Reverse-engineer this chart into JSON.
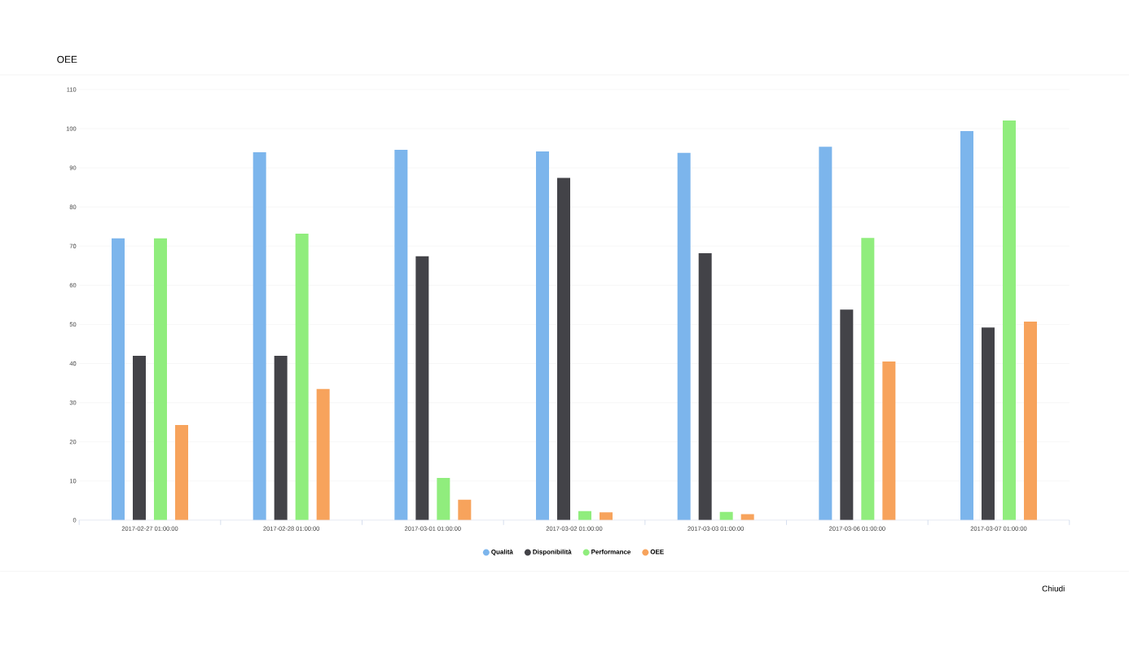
{
  "chart_data": {
    "type": "bar",
    "title": "OEE",
    "categories": [
      "2017-02-27 01:00:00",
      "2017-02-28 01:00:00",
      "2017-03-01 01:00:00",
      "2017-03-02 01:00:00",
      "2017-03-03 01:00:00",
      "2017-03-06 01:00:00",
      "2017-03-07 01:00:00"
    ],
    "series": [
      {
        "name": "Qualità",
        "color": "#7cb5ec",
        "values": [
          72,
          94,
          94.6,
          94.2,
          93.8,
          95.4,
          99.4
        ]
      },
      {
        "name": "Disponibilità",
        "color": "#434348",
        "values": [
          42,
          42,
          67.4,
          87.4,
          68.2,
          53.8,
          49.2
        ]
      },
      {
        "name": "Performance",
        "color": "#90ed7d",
        "values": [
          72,
          73.2,
          10.8,
          2.3,
          2.1,
          72.1,
          102.1
        ]
      },
      {
        "name": "OEE",
        "color": "#f7a35c",
        "values": [
          24.3,
          33.5,
          5.2,
          2,
          1.5,
          40.5,
          50.7
        ]
      }
    ],
    "ylim": [
      0,
      110
    ],
    "yticks": [
      0,
      10,
      20,
      30,
      40,
      50,
      60,
      70,
      80,
      90,
      100,
      110
    ],
    "grid": "y",
    "legend": "bottom",
    "annotations": [
      "Chiudi"
    ]
  }
}
